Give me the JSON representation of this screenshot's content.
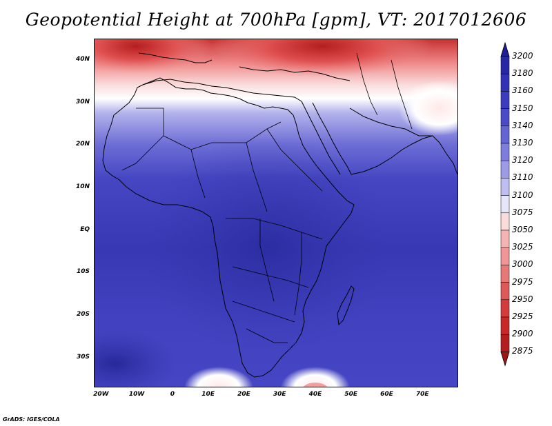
{
  "title": "Geopotential Height at 700hPa [gpm], VT: 2017012606",
  "credit": "GrADS: IGES/COLA",
  "map": {
    "lon_range": [
      -22,
      80
    ],
    "lat_range": [
      -37,
      45
    ],
    "lat_labels": [
      "40N",
      "30N",
      "20N",
      "10N",
      "EQ",
      "10S",
      "20S",
      "30S"
    ],
    "lat_values": [
      40,
      30,
      20,
      10,
      0,
      -10,
      -20,
      -30
    ],
    "lon_labels": [
      "20W",
      "10W",
      "0",
      "10E",
      "20E",
      "30E",
      "40E",
      "50E",
      "60E",
      "70E"
    ],
    "lon_values": [
      -20,
      -10,
      0,
      10,
      20,
      30,
      40,
      50,
      60,
      70
    ]
  },
  "colorbar": {
    "levels": [
      "3200",
      "3180",
      "3160",
      "3150",
      "3140",
      "3130",
      "3120",
      "3110",
      "3100",
      "3075",
      "3050",
      "3025",
      "3000",
      "2975",
      "2950",
      "2925",
      "2900",
      "2875"
    ],
    "colors": [
      "#1e1e96",
      "#2828a5",
      "#3232b4",
      "#3c3cbe",
      "#4b4bc8",
      "#6464d2",
      "#7d7ddc",
      "#9b9be6",
      "#bebef0",
      "#e6e6fa",
      "#fadcdc",
      "#f5b4b4",
      "#f09696",
      "#e67878",
      "#dc5a5a",
      "#d23c3c",
      "#c82828",
      "#b41e1e",
      "#a01414"
    ]
  }
}
